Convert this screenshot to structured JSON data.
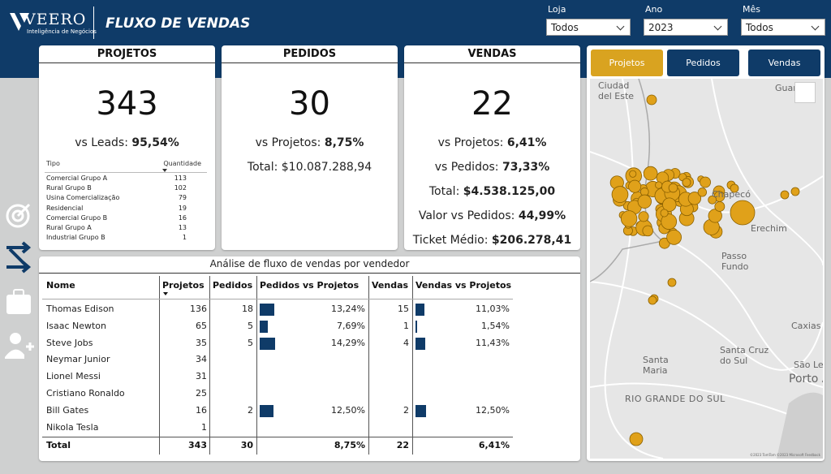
{
  "header": {
    "logo": "VEERO",
    "logo_sub": "Inteligência de Negócios",
    "title": "FLUXO DE VENDAS"
  },
  "filters": [
    {
      "label": "Loja",
      "value": "Todos"
    },
    {
      "label": "Ano",
      "value": "2023"
    },
    {
      "label": "Mês",
      "value": "Todos"
    }
  ],
  "cards": [
    {
      "title": "PROJETOS",
      "value": 343,
      "metrics": [
        {
          "label": "vs Leads:",
          "value": "95,54%"
        }
      ],
      "breakdown": {
        "columns": [
          "Tipo",
          "Quantidade"
        ],
        "rows": [
          [
            "Comercial Grupo A",
            113
          ],
          [
            "Rural Grupo B",
            102
          ],
          [
            "Usina Comercialização",
            79
          ],
          [
            "Residencial",
            19
          ],
          [
            "Comercial Grupo B",
            16
          ],
          [
            "Rural Grupo A",
            13
          ],
          [
            "Industrial Grupo B",
            1
          ]
        ]
      }
    },
    {
      "title": "PEDIDOS",
      "value": 30,
      "metrics": [
        {
          "label": "vs Projetos:",
          "value": "8,75%"
        },
        {
          "label": "Total:",
          "value": "$10.087.288,94",
          "plain": true
        }
      ]
    },
    {
      "title": "VENDAS",
      "value": 22,
      "metrics": [
        {
          "label": "vs Projetos:",
          "value": "6,41%"
        },
        {
          "label": "vs Pedidos:",
          "value": "73,33%"
        },
        {
          "label": "Total:",
          "value": "$4.538.125,00"
        },
        {
          "label": "Valor vs Pedidos:",
          "value": "44,99%"
        },
        {
          "label": "Ticket Médio:",
          "value": "$206.278,41"
        }
      ]
    }
  ],
  "table": {
    "title": "Análise de fluxo de vendas por vendedor",
    "columns": [
      "Nome",
      "Projetos",
      "Pedidos",
      "Pedidos vs Projetos",
      "Vendas",
      "Vendas vs Projetos"
    ],
    "rows": [
      [
        "Thomas Edison",
        136,
        18,
        {
          "value": 13.24,
          "label": "13,24%"
        },
        15,
        {
          "value": 11.03,
          "label": "11,03%"
        }
      ],
      [
        "Isaac Newton",
        65,
        5,
        {
          "value": 7.69,
          "label": "7,69%"
        },
        1,
        {
          "value": 1.54,
          "label": "1,54%"
        }
      ],
      [
        "Steve Jobs",
        35,
        5,
        {
          "value": 14.29,
          "label": "14,29%"
        },
        4,
        {
          "value": 11.43,
          "label": "11,43%"
        }
      ],
      [
        "Neymar Junior",
        34,
        null,
        null,
        null,
        null
      ],
      [
        "Lionel Messi",
        31,
        null,
        null,
        null,
        null
      ],
      [
        "Cristiano Ronaldo",
        25,
        null,
        null,
        null,
        null
      ],
      [
        "Bill Gates",
        16,
        2,
        {
          "value": 12.5,
          "label": "12,50%"
        },
        2,
        {
          "value": 12.5,
          "label": "12,50%"
        }
      ],
      [
        "Nikola Tesla",
        1,
        null,
        null,
        null,
        null
      ]
    ],
    "total": [
      "Total",
      343,
      30,
      "8,75%",
      22,
      "6,41%"
    ]
  },
  "map": {
    "tabs": [
      "Projetos",
      "Pedidos",
      "Vendas"
    ],
    "labels": [
      "Ciudad del Este",
      "Guar",
      "Chapecó",
      "Erechim",
      "Passo Fundo",
      "Santa Maria",
      "Santa Cruz do Sul",
      "Caxias d",
      "São Le",
      "Porto A",
      "RIO GRANDE DO SUL"
    ],
    "attribution": "©2023 TomTom ©2023 Microsoft Feedback"
  }
}
